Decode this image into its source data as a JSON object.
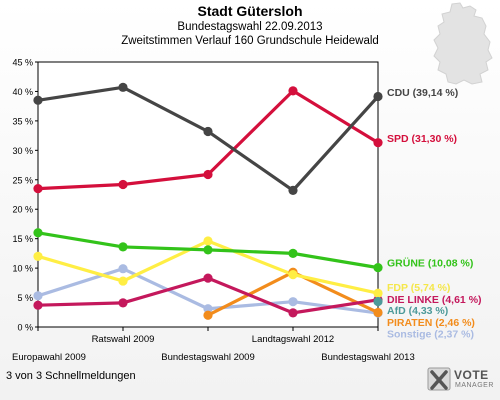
{
  "header": {
    "title": "Stadt Gütersloh",
    "subtitle": "Bundestagswahl 22.09.2013",
    "subtitle2": "Zweitstimmen Verlauf 160 Grundschule Heidewald"
  },
  "footer": {
    "note": "3 von 3 Schnellmeldungen"
  },
  "logo": {
    "line1": "VOTE",
    "line2": "MANAGER"
  },
  "chart_data": {
    "type": "line",
    "categories": [
      "Europawahl 2009",
      "Ratswahl 2009",
      "Bundestagswahl 2009",
      "Landtagswahl 2012",
      "Bundestagswahl 2013"
    ],
    "ylim": [
      0,
      45
    ],
    "yticks": [
      0,
      5,
      10,
      15,
      20,
      25,
      30,
      35,
      40,
      45
    ],
    "ytick_labels": [
      "0 %",
      "5 %",
      "10 %",
      "15 %",
      "20 %",
      "25 %",
      "30 %",
      "35 %",
      "40 %",
      "45 %"
    ],
    "grid": false,
    "series": [
      {
        "name": "CDU",
        "label": "CDU (39,14 %)",
        "color": "#454545",
        "values": [
          38.5,
          40.7,
          33.2,
          23.2,
          39.14
        ]
      },
      {
        "name": "SPD",
        "label": "SPD (31,30 %)",
        "color": "#d40f3c",
        "values": [
          23.5,
          24.2,
          25.9,
          40.1,
          31.3
        ]
      },
      {
        "name": "GRÜNE",
        "label": "GRÜNE (10,08 %)",
        "color": "#33c31a",
        "values": [
          16.0,
          13.6,
          13.1,
          12.5,
          10.08
        ]
      },
      {
        "name": "FDP",
        "label": "FDP (5,74 %)",
        "color": "#ffee44",
        "values": [
          12.0,
          7.8,
          14.6,
          8.9,
          5.74
        ]
      },
      {
        "name": "DIE LINKE",
        "label": "DIE LINKE (4,61 %)",
        "color": "#c4185c",
        "values": [
          3.7,
          4.1,
          8.3,
          2.4,
          4.61
        ]
      },
      {
        "name": "AfD",
        "label": "AfD (4,33 %)",
        "color": "#4d9a9a",
        "values": [
          null,
          null,
          null,
          null,
          4.33
        ]
      },
      {
        "name": "PIRATEN",
        "label": "PIRATEN (2,46 %)",
        "color": "#f28c1c",
        "values": [
          null,
          null,
          2.0,
          9.3,
          2.46
        ]
      },
      {
        "name": "Sonstige",
        "label": "Sonstige (2,37 %)",
        "color": "#aabbe2",
        "values": [
          5.3,
          9.9,
          3.1,
          4.3,
          2.37
        ]
      }
    ],
    "label_positions": [
      "bottom",
      "top",
      "bottom",
      "top",
      "bottom"
    ]
  }
}
